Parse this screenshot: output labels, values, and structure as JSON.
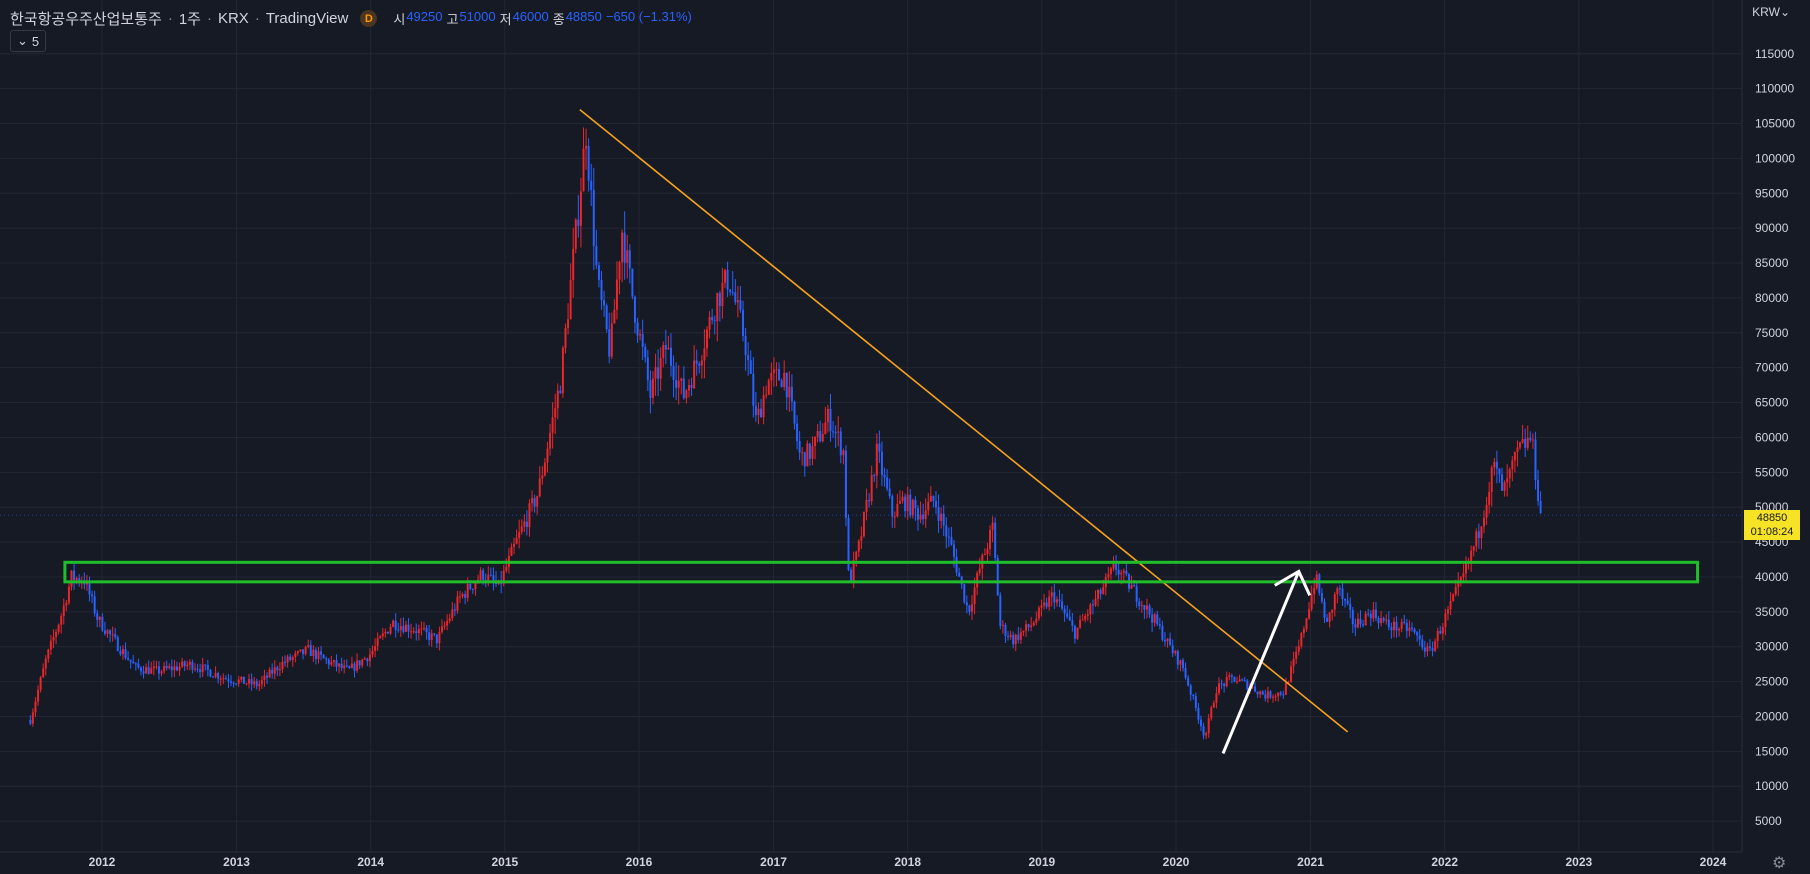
{
  "header": {
    "symbol": "한국항공우주산업보통주",
    "interval": "1주",
    "exchange": "KRX",
    "source": "TradingView",
    "badge": "D",
    "ohlc": [
      {
        "label": "시",
        "value": "49250"
      },
      {
        "label": "고",
        "value": "51000"
      },
      {
        "label": "저",
        "value": "46000"
      },
      {
        "label": "종",
        "value": "48850"
      }
    ],
    "change": "−650 (−1.31%)",
    "indicator_count": "5"
  },
  "currency": "KRW",
  "price_tag": {
    "price": "48850",
    "countdown": "01:08:24"
  },
  "colors": {
    "bg": "#161a25",
    "grid": "#232734",
    "up": "#e8262c",
    "down": "#2962ff",
    "trendline": "#f6a21a",
    "zone": "#1fbf2a",
    "arrow": "#ffffff",
    "axis_text": "#d1d4dc"
  },
  "chart_data": {
    "type": "candlestick",
    "yaxis": {
      "min": 0,
      "max": 117000,
      "ticks": [
        5000,
        10000,
        15000,
        20000,
        25000,
        30000,
        35000,
        40000,
        45000,
        50000,
        55000,
        60000,
        65000,
        70000,
        75000,
        80000,
        85000,
        90000,
        95000,
        100000,
        105000,
        110000,
        115000
      ]
    },
    "xaxis": {
      "ticks": [
        "2012",
        "2013",
        "2014",
        "2015",
        "2016",
        "2017",
        "2018",
        "2019",
        "2020",
        "2021",
        "2022",
        "2023",
        "2024"
      ]
    },
    "price_path": [
      [
        "2011-06-20",
        19500
      ],
      [
        "2011-08-01",
        28000
      ],
      [
        "2011-09-15",
        35000
      ],
      [
        "2011-10-10",
        40000
      ],
      [
        "2011-11-15",
        39500
      ],
      [
        "2011-12-20",
        34000
      ],
      [
        "2012-02-01",
        31000
      ],
      [
        "2012-04-01",
        27000
      ],
      [
        "2012-06-01",
        26500
      ],
      [
        "2012-09-01",
        27500
      ],
      [
        "2012-12-01",
        25500
      ],
      [
        "2013-03-01",
        24500
      ],
      [
        "2013-05-01",
        27500
      ],
      [
        "2013-07-15",
        29500
      ],
      [
        "2013-09-01",
        28000
      ],
      [
        "2013-11-01",
        26500
      ],
      [
        "2014-01-01",
        29000
      ],
      [
        "2014-03-01",
        33500
      ],
      [
        "2014-05-01",
        32500
      ],
      [
        "2014-07-01",
        31000
      ],
      [
        "2014-09-01",
        37000
      ],
      [
        "2014-11-01",
        40500
      ],
      [
        "2014-12-15",
        38500
      ],
      [
        "2015-02-01",
        45000
      ],
      [
        "2015-04-01",
        52000
      ],
      [
        "2015-06-01",
        68000
      ],
      [
        "2015-07-15",
        90000
      ],
      [
        "2015-08-10",
        104000
      ],
      [
        "2015-09-10",
        82000
      ],
      [
        "2015-10-15",
        72000
      ],
      [
        "2015-11-15",
        90000
      ],
      [
        "2015-12-15",
        80000
      ],
      [
        "2016-02-01",
        66000
      ],
      [
        "2016-03-15",
        73000
      ],
      [
        "2016-05-01",
        66000
      ],
      [
        "2016-06-15",
        72000
      ],
      [
        "2016-08-01",
        80000
      ],
      [
        "2016-09-01",
        83000
      ],
      [
        "2016-10-15",
        74000
      ],
      [
        "2016-11-15",
        62000
      ],
      [
        "2016-12-15",
        68000
      ],
      [
        "2017-02-01",
        69000
      ],
      [
        "2017-03-15",
        57000
      ],
      [
        "2017-04-15",
        58000
      ],
      [
        "2017-06-01",
        63000
      ],
      [
        "2017-07-10",
        58000
      ],
      [
        "2017-07-25",
        39000
      ],
      [
        "2017-08-20",
        44000
      ],
      [
        "2017-10-10",
        58000
      ],
      [
        "2017-11-20",
        49000
      ],
      [
        "2017-12-20",
        51000
      ],
      [
        "2018-02-01",
        49000
      ],
      [
        "2018-03-15",
        51000
      ],
      [
        "2018-05-01",
        44000
      ],
      [
        "2018-06-15",
        35000
      ],
      [
        "2018-07-15",
        41000
      ],
      [
        "2018-08-20",
        47000
      ],
      [
        "2018-09-10",
        33000
      ],
      [
        "2018-10-15",
        31000
      ],
      [
        "2018-12-01",
        33000
      ],
      [
        "2019-02-01",
        37500
      ],
      [
        "2019-04-01",
        32000
      ],
      [
        "2019-06-01",
        37000
      ],
      [
        "2019-07-20",
        41500
      ],
      [
        "2019-09-01",
        38500
      ],
      [
        "2019-11-01",
        34000
      ],
      [
        "2019-12-15",
        30000
      ],
      [
        "2020-01-20",
        27000
      ],
      [
        "2020-03-20",
        17000
      ],
      [
        "2020-04-20",
        24000
      ],
      [
        "2020-06-01",
        25500
      ],
      [
        "2020-07-15",
        24500
      ],
      [
        "2020-09-01",
        23000
      ],
      [
        "2020-10-20",
        23500
      ],
      [
        "2020-12-01",
        30000
      ],
      [
        "2021-01-15",
        40000
      ],
      [
        "2021-02-15",
        33000
      ],
      [
        "2021-03-15",
        38500
      ],
      [
        "2021-05-01",
        33000
      ],
      [
        "2021-06-15",
        35000
      ],
      [
        "2021-08-01",
        33000
      ],
      [
        "2021-10-01",
        32500
      ],
      [
        "2021-11-20",
        29000
      ],
      [
        "2022-01-10",
        35000
      ],
      [
        "2022-02-20",
        40000
      ],
      [
        "2022-04-01",
        46000
      ],
      [
        "2022-05-15",
        56000
      ],
      [
        "2022-06-10",
        52000
      ],
      [
        "2022-07-20",
        58000
      ],
      [
        "2022-08-25",
        60000
      ],
      [
        "2022-09-19",
        48850
      ]
    ],
    "annotations": {
      "trendline": {
        "from": [
          "2015-07-24",
          107000
        ],
        "to": [
          "2021-04-12",
          17800
        ]
      },
      "zone": {
        "x_start": "2011-09-22",
        "x_end": "2023-11-20",
        "y_low": 39300,
        "y_high": 42100
      },
      "arrow": {
        "from": [
          "2020-05-08",
          14700
        ],
        "to": [
          "2020-11-30",
          40800
        ]
      }
    }
  }
}
